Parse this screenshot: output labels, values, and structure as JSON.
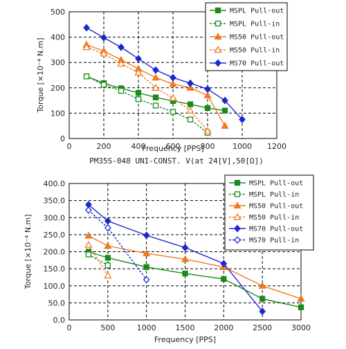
{
  "chart_data": [
    {
      "type": "line",
      "caption": "PM35S-048 UNI-CONST. V(at 24[V],50[Ω])",
      "xlabel": "Frequency [PPS]",
      "ylabel": "Torque [×10⁻⁴ N.m]",
      "xlim": [
        0,
        1200
      ],
      "ylim": [
        0,
        500
      ],
      "xticks": [
        0,
        200,
        400,
        600,
        800,
        1000,
        1200
      ],
      "yticks": [
        0,
        100,
        200,
        300,
        400,
        500
      ],
      "xtick_labels": [
        "0",
        "200",
        "400",
        "600",
        "800",
        "1000",
        "1200"
      ],
      "ytick_labels": [
        "0",
        "100",
        "200",
        "300",
        "400",
        "500"
      ],
      "grid": true,
      "legend_position": "top-right",
      "series": [
        {
          "name": "MSPL Pull-out",
          "color": "#1a8a1a",
          "dash": false,
          "marker": "square",
          "filled": true,
          "x": [
            100,
            200,
            300,
            400,
            500,
            600,
            700,
            800,
            900
          ],
          "y": [
            245,
            218,
            198,
            180,
            162,
            148,
            135,
            120,
            110
          ]
        },
        {
          "name": "MSPL Pull-in",
          "color": "#1a8a1a",
          "dash": true,
          "marker": "square",
          "filled": false,
          "x": [
            100,
            200,
            300,
            400,
            500,
            600,
            700,
            800
          ],
          "y": [
            245,
            212,
            188,
            155,
            130,
            105,
            75,
            22
          ]
        },
        {
          "name": "MS50 Pull-out",
          "color": "#f07820",
          "dash": false,
          "marker": "triangle",
          "filled": true,
          "x": [
            100,
            200,
            300,
            400,
            500,
            600,
            700,
            800,
            900
          ],
          "y": [
            370,
            345,
            310,
            275,
            240,
            215,
            200,
            170,
            50
          ]
        },
        {
          "name": "MS50 Pull-in",
          "color": "#f07820",
          "dash": true,
          "marker": "triangle",
          "filled": false,
          "x": [
            100,
            200,
            300,
            400,
            500,
            600,
            700,
            800
          ],
          "y": [
            360,
            335,
            295,
            260,
            200,
            160,
            110,
            30
          ]
        },
        {
          "name": "MS70 Pull-out",
          "color": "#1a28d0",
          "dash": false,
          "marker": "diamond",
          "filled": true,
          "x": [
            100,
            200,
            300,
            400,
            500,
            600,
            700,
            800,
            900,
            1000
          ],
          "y": [
            437,
            398,
            360,
            315,
            270,
            240,
            218,
            195,
            150,
            75
          ]
        }
      ]
    },
    {
      "type": "line",
      "xlabel": "Frequency [PPS]",
      "ylabel": "Torque [×10⁻⁴ N.m]",
      "xlim": [
        0,
        3000
      ],
      "ylim": [
        0,
        400
      ],
      "xticks": [
        0,
        500,
        1000,
        1500,
        2000,
        2500,
        3000
      ],
      "yticks": [
        0,
        50,
        100,
        150,
        200,
        250,
        300,
        350,
        400
      ],
      "xtick_labels": [
        "0",
        "500",
        "1000",
        "1500",
        "2000",
        "2500",
        "3000"
      ],
      "ytick_labels": [
        "0.0",
        "50.0",
        "100.0",
        "150.0",
        "200.0",
        "250.0",
        "300.0",
        "350.0",
        "400.0"
      ],
      "grid": true,
      "legend_position": "top-right",
      "series": [
        {
          "name": "MSPL Pull-out",
          "color": "#1a8a1a",
          "dash": false,
          "marker": "square",
          "filled": true,
          "x": [
            250,
            500,
            1000,
            1500,
            2000,
            2500,
            3000
          ],
          "y": [
            200,
            182,
            155,
            136,
            120,
            62,
            37
          ]
        },
        {
          "name": "MSPL Pull-in",
          "color": "#1a8a1a",
          "dash": true,
          "marker": "square",
          "filled": false,
          "x": [
            250,
            500
          ],
          "y": [
            192,
            160
          ]
        },
        {
          "name": "MS50 Pull-out",
          "color": "#f07820",
          "dash": false,
          "marker": "triangle",
          "filled": true,
          "x": [
            250,
            500,
            1000,
            1500,
            2000,
            2500,
            3000
          ],
          "y": [
            247,
            217,
            195,
            178,
            155,
            100,
            62
          ]
        },
        {
          "name": "MS50 Pull-in",
          "color": "#f07820",
          "dash": true,
          "marker": "triangle",
          "filled": false,
          "x": [
            250,
            500
          ],
          "y": [
            220,
            130
          ]
        },
        {
          "name": "MS70 Pull-out",
          "color": "#1a28d0",
          "dash": false,
          "marker": "diamond",
          "filled": true,
          "x": [
            250,
            500,
            1000,
            1500,
            2000,
            2500
          ],
          "y": [
            338,
            290,
            248,
            212,
            165,
            25
          ]
        },
        {
          "name": "MS70 Pull-in",
          "color": "#1a28d0",
          "dash": true,
          "marker": "diamond",
          "filled": false,
          "x": [
            250,
            500,
            1000
          ],
          "y": [
            322,
            270,
            118
          ]
        }
      ]
    }
  ]
}
